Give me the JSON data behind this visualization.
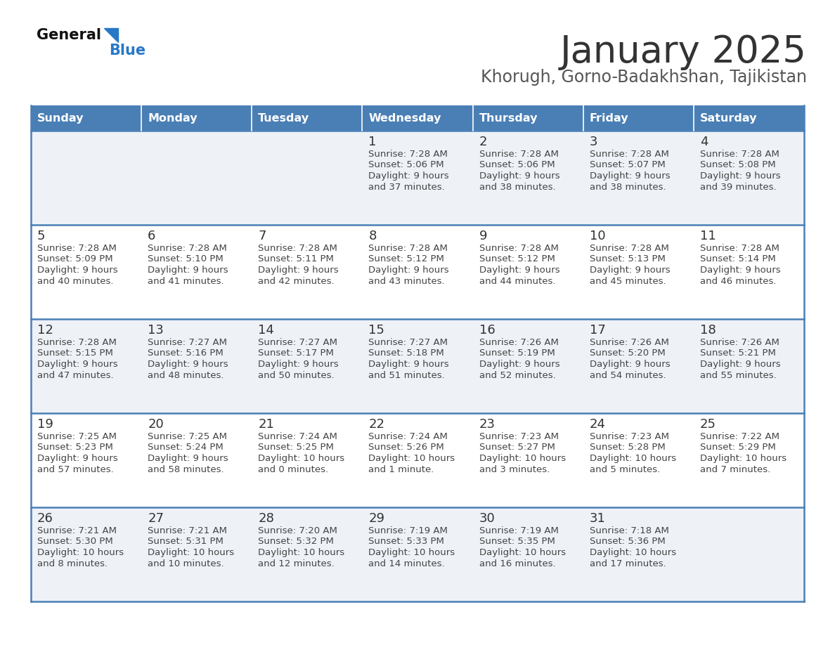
{
  "title": "January 2025",
  "subtitle": "Khorugh, Gorno-Badakhshan, Tajikistan",
  "days_of_week": [
    "Sunday",
    "Monday",
    "Tuesday",
    "Wednesday",
    "Thursday",
    "Friday",
    "Saturday"
  ],
  "header_bg": "#4a7fb5",
  "header_text": "#ffffff",
  "row_bg_odd": "#eef2f7",
  "row_bg_even": "#ffffff",
  "cell_border": "#4a7fb5",
  "day_num_color": "#333333",
  "info_color": "#444444",
  "title_color": "#333333",
  "subtitle_color": "#555555",
  "calendar_data": [
    [
      {
        "day": "",
        "sunrise": "",
        "sunset": "",
        "daylight": ""
      },
      {
        "day": "",
        "sunrise": "",
        "sunset": "",
        "daylight": ""
      },
      {
        "day": "",
        "sunrise": "",
        "sunset": "",
        "daylight": ""
      },
      {
        "day": "1",
        "sunrise": "7:28 AM",
        "sunset": "5:06 PM",
        "daylight_line1": "Daylight: 9 hours",
        "daylight_line2": "and 37 minutes."
      },
      {
        "day": "2",
        "sunrise": "7:28 AM",
        "sunset": "5:06 PM",
        "daylight_line1": "Daylight: 9 hours",
        "daylight_line2": "and 38 minutes."
      },
      {
        "day": "3",
        "sunrise": "7:28 AM",
        "sunset": "5:07 PM",
        "daylight_line1": "Daylight: 9 hours",
        "daylight_line2": "and 38 minutes."
      },
      {
        "day": "4",
        "sunrise": "7:28 AM",
        "sunset": "5:08 PM",
        "daylight_line1": "Daylight: 9 hours",
        "daylight_line2": "and 39 minutes."
      }
    ],
    [
      {
        "day": "5",
        "sunrise": "7:28 AM",
        "sunset": "5:09 PM",
        "daylight_line1": "Daylight: 9 hours",
        "daylight_line2": "and 40 minutes."
      },
      {
        "day": "6",
        "sunrise": "7:28 AM",
        "sunset": "5:10 PM",
        "daylight_line1": "Daylight: 9 hours",
        "daylight_line2": "and 41 minutes."
      },
      {
        "day": "7",
        "sunrise": "7:28 AM",
        "sunset": "5:11 PM",
        "daylight_line1": "Daylight: 9 hours",
        "daylight_line2": "and 42 minutes."
      },
      {
        "day": "8",
        "sunrise": "7:28 AM",
        "sunset": "5:12 PM",
        "daylight_line1": "Daylight: 9 hours",
        "daylight_line2": "and 43 minutes."
      },
      {
        "day": "9",
        "sunrise": "7:28 AM",
        "sunset": "5:12 PM",
        "daylight_line1": "Daylight: 9 hours",
        "daylight_line2": "and 44 minutes."
      },
      {
        "day": "10",
        "sunrise": "7:28 AM",
        "sunset": "5:13 PM",
        "daylight_line1": "Daylight: 9 hours",
        "daylight_line2": "and 45 minutes."
      },
      {
        "day": "11",
        "sunrise": "7:28 AM",
        "sunset": "5:14 PM",
        "daylight_line1": "Daylight: 9 hours",
        "daylight_line2": "and 46 minutes."
      }
    ],
    [
      {
        "day": "12",
        "sunrise": "7:28 AM",
        "sunset": "5:15 PM",
        "daylight_line1": "Daylight: 9 hours",
        "daylight_line2": "and 47 minutes."
      },
      {
        "day": "13",
        "sunrise": "7:27 AM",
        "sunset": "5:16 PM",
        "daylight_line1": "Daylight: 9 hours",
        "daylight_line2": "and 48 minutes."
      },
      {
        "day": "14",
        "sunrise": "7:27 AM",
        "sunset": "5:17 PM",
        "daylight_line1": "Daylight: 9 hours",
        "daylight_line2": "and 50 minutes."
      },
      {
        "day": "15",
        "sunrise": "7:27 AM",
        "sunset": "5:18 PM",
        "daylight_line1": "Daylight: 9 hours",
        "daylight_line2": "and 51 minutes."
      },
      {
        "day": "16",
        "sunrise": "7:26 AM",
        "sunset": "5:19 PM",
        "daylight_line1": "Daylight: 9 hours",
        "daylight_line2": "and 52 minutes."
      },
      {
        "day": "17",
        "sunrise": "7:26 AM",
        "sunset": "5:20 PM",
        "daylight_line1": "Daylight: 9 hours",
        "daylight_line2": "and 54 minutes."
      },
      {
        "day": "18",
        "sunrise": "7:26 AM",
        "sunset": "5:21 PM",
        "daylight_line1": "Daylight: 9 hours",
        "daylight_line2": "and 55 minutes."
      }
    ],
    [
      {
        "day": "19",
        "sunrise": "7:25 AM",
        "sunset": "5:23 PM",
        "daylight_line1": "Daylight: 9 hours",
        "daylight_line2": "and 57 minutes."
      },
      {
        "day": "20",
        "sunrise": "7:25 AM",
        "sunset": "5:24 PM",
        "daylight_line1": "Daylight: 9 hours",
        "daylight_line2": "and 58 minutes."
      },
      {
        "day": "21",
        "sunrise": "7:24 AM",
        "sunset": "5:25 PM",
        "daylight_line1": "Daylight: 10 hours",
        "daylight_line2": "and 0 minutes."
      },
      {
        "day": "22",
        "sunrise": "7:24 AM",
        "sunset": "5:26 PM",
        "daylight_line1": "Daylight: 10 hours",
        "daylight_line2": "and 1 minute."
      },
      {
        "day": "23",
        "sunrise": "7:23 AM",
        "sunset": "5:27 PM",
        "daylight_line1": "Daylight: 10 hours",
        "daylight_line2": "and 3 minutes."
      },
      {
        "day": "24",
        "sunrise": "7:23 AM",
        "sunset": "5:28 PM",
        "daylight_line1": "Daylight: 10 hours",
        "daylight_line2": "and 5 minutes."
      },
      {
        "day": "25",
        "sunrise": "7:22 AM",
        "sunset": "5:29 PM",
        "daylight_line1": "Daylight: 10 hours",
        "daylight_line2": "and 7 minutes."
      }
    ],
    [
      {
        "day": "26",
        "sunrise": "7:21 AM",
        "sunset": "5:30 PM",
        "daylight_line1": "Daylight: 10 hours",
        "daylight_line2": "and 8 minutes."
      },
      {
        "day": "27",
        "sunrise": "7:21 AM",
        "sunset": "5:31 PM",
        "daylight_line1": "Daylight: 10 hours",
        "daylight_line2": "and 10 minutes."
      },
      {
        "day": "28",
        "sunrise": "7:20 AM",
        "sunset": "5:32 PM",
        "daylight_line1": "Daylight: 10 hours",
        "daylight_line2": "and 12 minutes."
      },
      {
        "day": "29",
        "sunrise": "7:19 AM",
        "sunset": "5:33 PM",
        "daylight_line1": "Daylight: 10 hours",
        "daylight_line2": "and 14 minutes."
      },
      {
        "day": "30",
        "sunrise": "7:19 AM",
        "sunset": "5:35 PM",
        "daylight_line1": "Daylight: 10 hours",
        "daylight_line2": "and 16 minutes."
      },
      {
        "day": "31",
        "sunrise": "7:18 AM",
        "sunset": "5:36 PM",
        "daylight_line1": "Daylight: 10 hours",
        "daylight_line2": "and 17 minutes."
      },
      {
        "day": "",
        "sunrise": "",
        "sunset": "",
        "daylight_line1": "",
        "daylight_line2": ""
      }
    ]
  ]
}
